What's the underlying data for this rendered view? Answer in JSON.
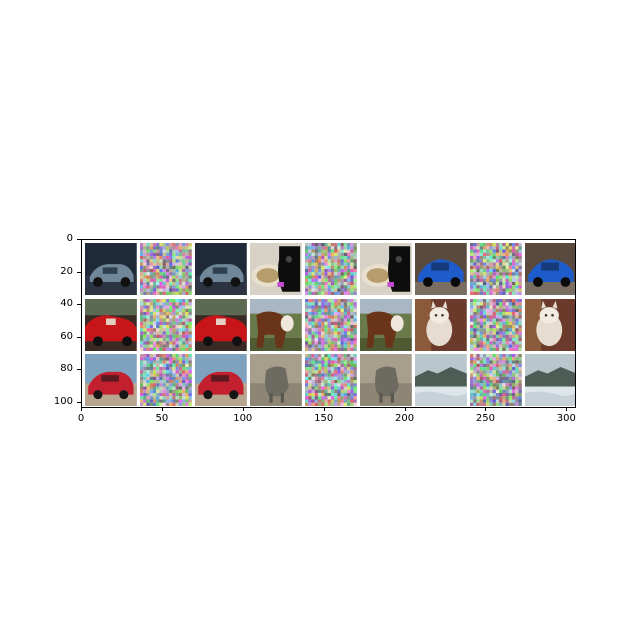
{
  "figure": {
    "image_grid": {
      "rows": 3,
      "cols": 9,
      "tile_kinds": [
        [
          "car_dark_blue",
          "noise",
          "car_dark_blue",
          "cat_black_tan",
          "noise",
          "cat_black_tan",
          "car_bright_blue",
          "noise",
          "car_bright_blue"
        ],
        [
          "car_red_open",
          "noise",
          "car_red_open",
          "horse_brown",
          "noise",
          "horse_brown",
          "cat_white",
          "noise",
          "cat_white"
        ],
        [
          "car_red_hatch",
          "noise",
          "car_red_hatch",
          "animal_gray",
          "noise",
          "animal_gray",
          "landscape_snow",
          "noise",
          "landscape_snow"
        ]
      ]
    },
    "x_axis": {
      "range": [
        0,
        306
      ],
      "ticks": [
        "0",
        "50",
        "100",
        "150",
        "200",
        "250",
        "300"
      ],
      "tick_values": [
        0,
        50,
        100,
        150,
        200,
        250,
        300
      ]
    },
    "y_axis": {
      "range": [
        0,
        104
      ],
      "ticks": [
        "0",
        "20",
        "40",
        "60",
        "80",
        "100"
      ],
      "tick_values": [
        0,
        20,
        40,
        60,
        80,
        100
      ]
    },
    "colors": {
      "gap": "#ffffff",
      "axis": "#000000"
    }
  }
}
